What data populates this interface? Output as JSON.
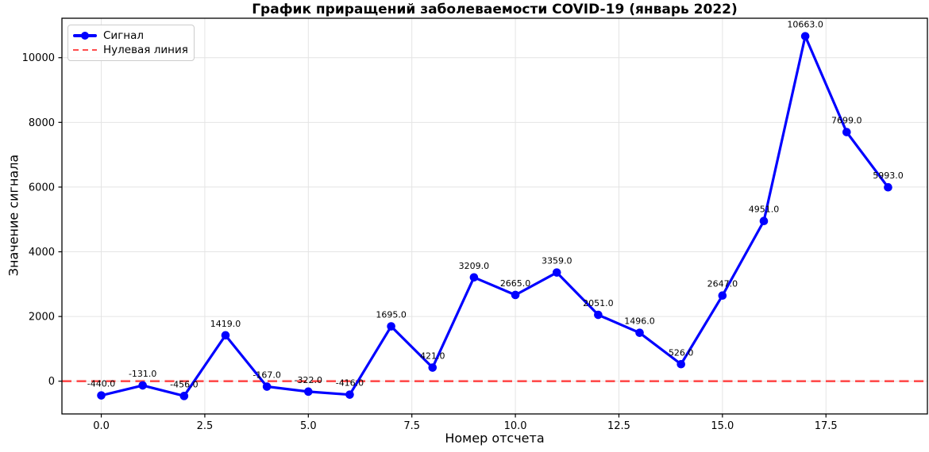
{
  "chart_data": {
    "type": "line",
    "title": "График приращений заболеваемости COVID-19 (январь 2022)",
    "xlabel": "Номер отсчета",
    "ylabel": "Значение сигнала",
    "series": [
      {
        "name": "Сигнал",
        "x": [
          0,
          1,
          2,
          3,
          4,
          5,
          6,
          7,
          8,
          9,
          10,
          11,
          12,
          13,
          14,
          15,
          16,
          17,
          18,
          19
        ],
        "values": [
          -440,
          -131,
          -456,
          1419,
          -167,
          -322,
          -416,
          1695,
          421,
          3209,
          2665,
          3359,
          2051,
          1496,
          526,
          2647,
          4951,
          10663,
          7699,
          5993
        ],
        "point_labels": [
          "-440.0",
          "-131.0",
          "-456.0",
          "1419.0",
          "-167.0",
          "-322.0",
          "-416.0",
          "1695.0",
          "421.0",
          "3209.0",
          "2665.0",
          "3359.0",
          "2051.0",
          "1496.0",
          "526.0",
          "2647.0",
          "4951.0",
          "10663.0",
          "7699.0",
          "5993.0"
        ]
      }
    ],
    "zero_line": {
      "label": "Нулевая линия",
      "value": 0
    },
    "x_ticks": [
      {
        "v": 0,
        "label": "0.0"
      },
      {
        "v": 2.5,
        "label": "2.5"
      },
      {
        "v": 5,
        "label": "5.0"
      },
      {
        "v": 7.5,
        "label": "7.5"
      },
      {
        "v": 10,
        "label": "10.0"
      },
      {
        "v": 12.5,
        "label": "12.5"
      },
      {
        "v": 15,
        "label": "15.0"
      },
      {
        "v": 17.5,
        "label": "17.5"
      }
    ],
    "y_ticks": [
      {
        "v": 0,
        "label": "0"
      },
      {
        "v": 2000,
        "label": "2000"
      },
      {
        "v": 4000,
        "label": "4000"
      },
      {
        "v": 6000,
        "label": "6000"
      },
      {
        "v": 8000,
        "label": "8000"
      },
      {
        "v": 10000,
        "label": "10000"
      }
    ],
    "xlim": [
      -0.95,
      19.95
    ],
    "ylim": [
      -1012,
      11219
    ],
    "grid": true,
    "legend_position": "upper left",
    "colors": {
      "line": "#0000FF",
      "zero_line": "#FF4C4C",
      "grid": "#E4E4E4",
      "spine": "#000000",
      "text": "#000000"
    }
  }
}
